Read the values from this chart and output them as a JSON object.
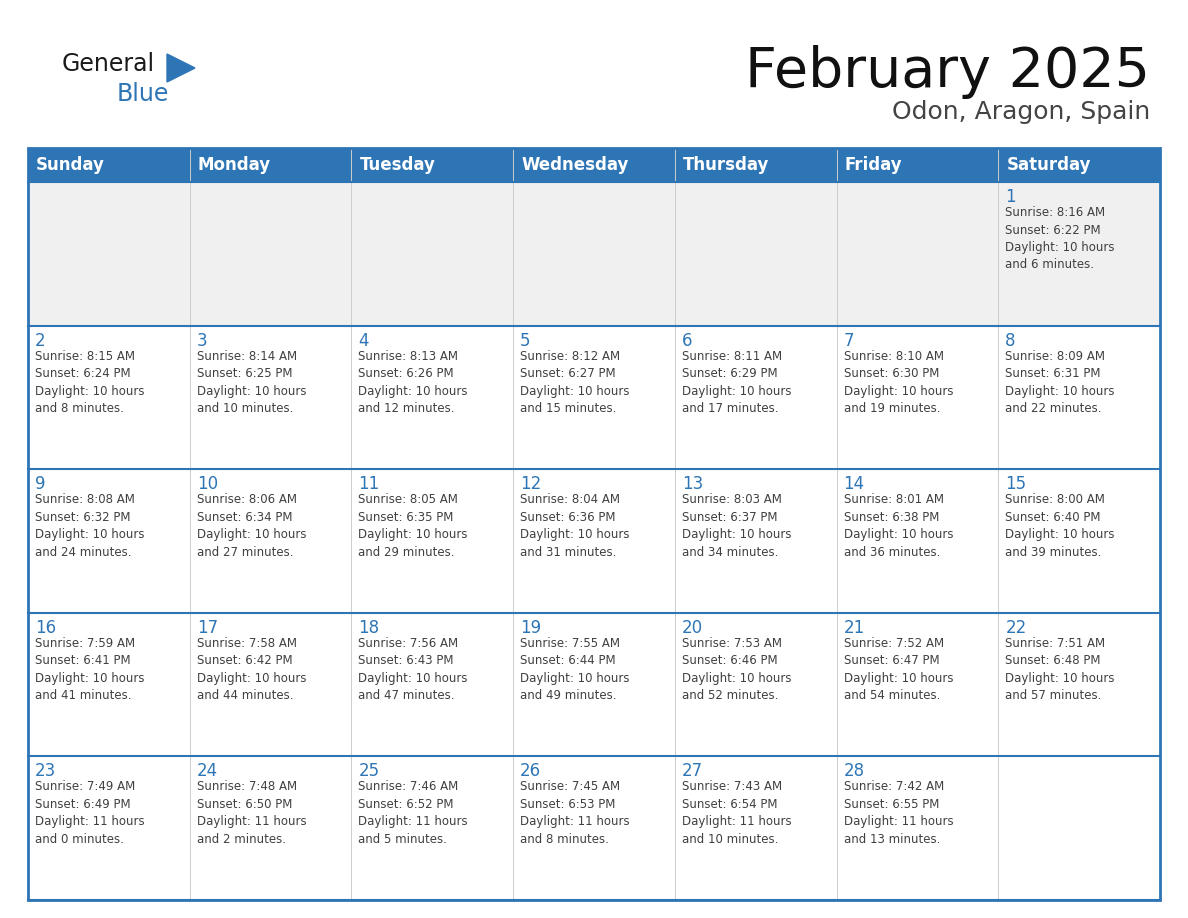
{
  "title": "February 2025",
  "subtitle": "Odon, Aragon, Spain",
  "header_color": "#2e75b6",
  "header_text_color": "#ffffff",
  "border_color": "#2e75b6",
  "text_color": "#404040",
  "day_number_color": "#2e75b6",
  "separator_color": "#2e75b6",
  "day_headers": [
    "Sunday",
    "Monday",
    "Tuesday",
    "Wednesday",
    "Thursday",
    "Friday",
    "Saturday"
  ],
  "weeks": [
    [
      {
        "day": "",
        "info": ""
      },
      {
        "day": "",
        "info": ""
      },
      {
        "day": "",
        "info": ""
      },
      {
        "day": "",
        "info": ""
      },
      {
        "day": "",
        "info": ""
      },
      {
        "day": "",
        "info": ""
      },
      {
        "day": "1",
        "info": "Sunrise: 8:16 AM\nSunset: 6:22 PM\nDaylight: 10 hours\nand 6 minutes."
      }
    ],
    [
      {
        "day": "2",
        "info": "Sunrise: 8:15 AM\nSunset: 6:24 PM\nDaylight: 10 hours\nand 8 minutes."
      },
      {
        "day": "3",
        "info": "Sunrise: 8:14 AM\nSunset: 6:25 PM\nDaylight: 10 hours\nand 10 minutes."
      },
      {
        "day": "4",
        "info": "Sunrise: 8:13 AM\nSunset: 6:26 PM\nDaylight: 10 hours\nand 12 minutes."
      },
      {
        "day": "5",
        "info": "Sunrise: 8:12 AM\nSunset: 6:27 PM\nDaylight: 10 hours\nand 15 minutes."
      },
      {
        "day": "6",
        "info": "Sunrise: 8:11 AM\nSunset: 6:29 PM\nDaylight: 10 hours\nand 17 minutes."
      },
      {
        "day": "7",
        "info": "Sunrise: 8:10 AM\nSunset: 6:30 PM\nDaylight: 10 hours\nand 19 minutes."
      },
      {
        "day": "8",
        "info": "Sunrise: 8:09 AM\nSunset: 6:31 PM\nDaylight: 10 hours\nand 22 minutes."
      }
    ],
    [
      {
        "day": "9",
        "info": "Sunrise: 8:08 AM\nSunset: 6:32 PM\nDaylight: 10 hours\nand 24 minutes."
      },
      {
        "day": "10",
        "info": "Sunrise: 8:06 AM\nSunset: 6:34 PM\nDaylight: 10 hours\nand 27 minutes."
      },
      {
        "day": "11",
        "info": "Sunrise: 8:05 AM\nSunset: 6:35 PM\nDaylight: 10 hours\nand 29 minutes."
      },
      {
        "day": "12",
        "info": "Sunrise: 8:04 AM\nSunset: 6:36 PM\nDaylight: 10 hours\nand 31 minutes."
      },
      {
        "day": "13",
        "info": "Sunrise: 8:03 AM\nSunset: 6:37 PM\nDaylight: 10 hours\nand 34 minutes."
      },
      {
        "day": "14",
        "info": "Sunrise: 8:01 AM\nSunset: 6:38 PM\nDaylight: 10 hours\nand 36 minutes."
      },
      {
        "day": "15",
        "info": "Sunrise: 8:00 AM\nSunset: 6:40 PM\nDaylight: 10 hours\nand 39 minutes."
      }
    ],
    [
      {
        "day": "16",
        "info": "Sunrise: 7:59 AM\nSunset: 6:41 PM\nDaylight: 10 hours\nand 41 minutes."
      },
      {
        "day": "17",
        "info": "Sunrise: 7:58 AM\nSunset: 6:42 PM\nDaylight: 10 hours\nand 44 minutes."
      },
      {
        "day": "18",
        "info": "Sunrise: 7:56 AM\nSunset: 6:43 PM\nDaylight: 10 hours\nand 47 minutes."
      },
      {
        "day": "19",
        "info": "Sunrise: 7:55 AM\nSunset: 6:44 PM\nDaylight: 10 hours\nand 49 minutes."
      },
      {
        "day": "20",
        "info": "Sunrise: 7:53 AM\nSunset: 6:46 PM\nDaylight: 10 hours\nand 52 minutes."
      },
      {
        "day": "21",
        "info": "Sunrise: 7:52 AM\nSunset: 6:47 PM\nDaylight: 10 hours\nand 54 minutes."
      },
      {
        "day": "22",
        "info": "Sunrise: 7:51 AM\nSunset: 6:48 PM\nDaylight: 10 hours\nand 57 minutes."
      }
    ],
    [
      {
        "day": "23",
        "info": "Sunrise: 7:49 AM\nSunset: 6:49 PM\nDaylight: 11 hours\nand 0 minutes."
      },
      {
        "day": "24",
        "info": "Sunrise: 7:48 AM\nSunset: 6:50 PM\nDaylight: 11 hours\nand 2 minutes."
      },
      {
        "day": "25",
        "info": "Sunrise: 7:46 AM\nSunset: 6:52 PM\nDaylight: 11 hours\nand 5 minutes."
      },
      {
        "day": "26",
        "info": "Sunrise: 7:45 AM\nSunset: 6:53 PM\nDaylight: 11 hours\nand 8 minutes."
      },
      {
        "day": "27",
        "info": "Sunrise: 7:43 AM\nSunset: 6:54 PM\nDaylight: 11 hours\nand 10 minutes."
      },
      {
        "day": "28",
        "info": "Sunrise: 7:42 AM\nSunset: 6:55 PM\nDaylight: 11 hours\nand 13 minutes."
      },
      {
        "day": "",
        "info": ""
      }
    ]
  ]
}
